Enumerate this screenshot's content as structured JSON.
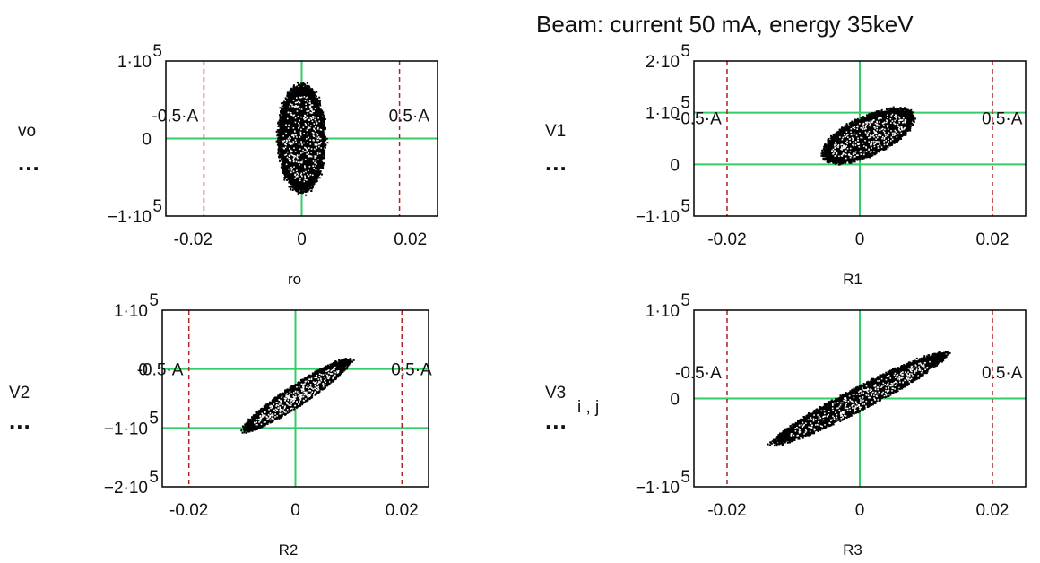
{
  "figure": {
    "title": "Beam: current 50 mA, energy 35keV"
  },
  "colors": {
    "axis_line": "#33cc66",
    "marker": "#b22222",
    "cloud": "#000000",
    "frame": "#000000"
  },
  "chart_data": [
    {
      "type": "scatter",
      "id": "p1",
      "xlabel": "ro",
      "ylabel": "vo",
      "ylabel_sub": "",
      "ylabel_dots": "...",
      "xlim": [
        -0.025,
        0.025
      ],
      "ylim": [
        -100000,
        100000
      ],
      "xticks": [
        -0.02,
        0,
        0.02
      ],
      "xtick_labels": [
        "-0.02",
        "0",
        "0.02"
      ],
      "yticks": [
        100000,
        0,
        -100000
      ],
      "ytick_labels": [
        {
          "m": "1·10",
          "e": "5"
        },
        {
          "m": "0",
          "e": ""
        },
        {
          "m": "−1·10",
          "e": "5"
        }
      ],
      "markers": [
        -0.018,
        0.018
      ],
      "marker_labels": [
        "-0.5·A",
        "0.5·A"
      ],
      "marker_label_y": 30000,
      "hline": 0,
      "cloud": {
        "cx": 0.0,
        "cy": 0,
        "semi_major_x": 0.0042,
        "semi_major_y": 67000,
        "tilt_dy_per_dx": 0,
        "n": 1500
      }
    },
    {
      "type": "scatter",
      "id": "p2",
      "xlabel": "R1",
      "ylabel": "V1",
      "ylabel_sub": "",
      "ylabel_dots": "...",
      "xlim": [
        -0.025,
        0.025
      ],
      "ylim": [
        -100000,
        200000
      ],
      "xticks": [
        -0.02,
        0,
        0.02
      ],
      "xtick_labels": [
        "-0.02",
        "0",
        "0.02"
      ],
      "yticks": [
        200000,
        100000,
        0,
        -100000
      ],
      "ytick_labels": [
        {
          "m": "2·10",
          "e": "5"
        },
        {
          "m": "1·10",
          "e": "5"
        },
        {
          "m": "0",
          "e": ""
        },
        {
          "m": "−1·10",
          "e": "5"
        }
      ],
      "markers": [
        -0.02,
        0.02
      ],
      "marker_labels": [
        "-0.5·A",
        "0.5·A"
      ],
      "marker_label_y": 90000,
      "hline": 0,
      "hline2": 100000,
      "cloud": {
        "cx": 0.0013,
        "cy": 55000,
        "semi_major_x": 0.0065,
        "semi_major_y": 40000,
        "tilt_dy_per_dx": 6000000,
        "n": 1500
      }
    },
    {
      "type": "scatter",
      "id": "p3",
      "xlabel": "R2",
      "ylabel": "V2",
      "ylabel_sub": "",
      "ylabel_dots": "...",
      "xlim": [
        -0.025,
        0.025
      ],
      "ylim": [
        -200000,
        100000
      ],
      "xticks": [
        -0.02,
        0,
        0.02
      ],
      "xtick_labels": [
        "-0.02",
        "0",
        "0.02"
      ],
      "yticks": [
        100000,
        0,
        -100000,
        -200000
      ],
      "ytick_labels": [
        {
          "m": "1·10",
          "e": "5"
        },
        {
          "m": "0",
          "e": ""
        },
        {
          "m": "−1·10",
          "e": "5"
        },
        {
          "m": "−2·10",
          "e": "5"
        }
      ],
      "markers": [
        -0.02,
        0.02
      ],
      "marker_labels": [
        "-0.5·A",
        "0.5·A"
      ],
      "marker_label_y": 0,
      "hline": 0,
      "hline2": -100000,
      "cloud": {
        "cx": 0.0002,
        "cy": -45000,
        "semi_major_x": 0.0095,
        "semi_major_y": 20000,
        "tilt_dy_per_dx": 6000000,
        "n": 1500
      }
    },
    {
      "type": "scatter",
      "id": "p4",
      "xlabel": "R3",
      "ylabel": "V3",
      "ylabel_sub": "i , j",
      "ylabel_dots": "...",
      "xlim": [
        -0.025,
        0.025
      ],
      "ylim": [
        -100000,
        100000
      ],
      "xticks": [
        -0.02,
        0,
        0.02
      ],
      "xtick_labels": [
        "-0.02",
        "0",
        "0.02"
      ],
      "yticks": [
        100000,
        0,
        -100000
      ],
      "ytick_labels": [
        {
          "m": "1·10",
          "e": "5"
        },
        {
          "m": "0",
          "e": ""
        },
        {
          "m": "−1·10",
          "e": "5"
        }
      ],
      "markers": [
        -0.02,
        0.02
      ],
      "marker_labels": [
        "-0.5·A",
        "0.5·A"
      ],
      "marker_label_y": 30000,
      "hline": 0,
      "cloud": {
        "cx": 0.0,
        "cy": 0,
        "semi_major_x": 0.0125,
        "semi_major_y": 14000,
        "tilt_dy_per_dx": 3900000,
        "n": 1600
      }
    }
  ]
}
